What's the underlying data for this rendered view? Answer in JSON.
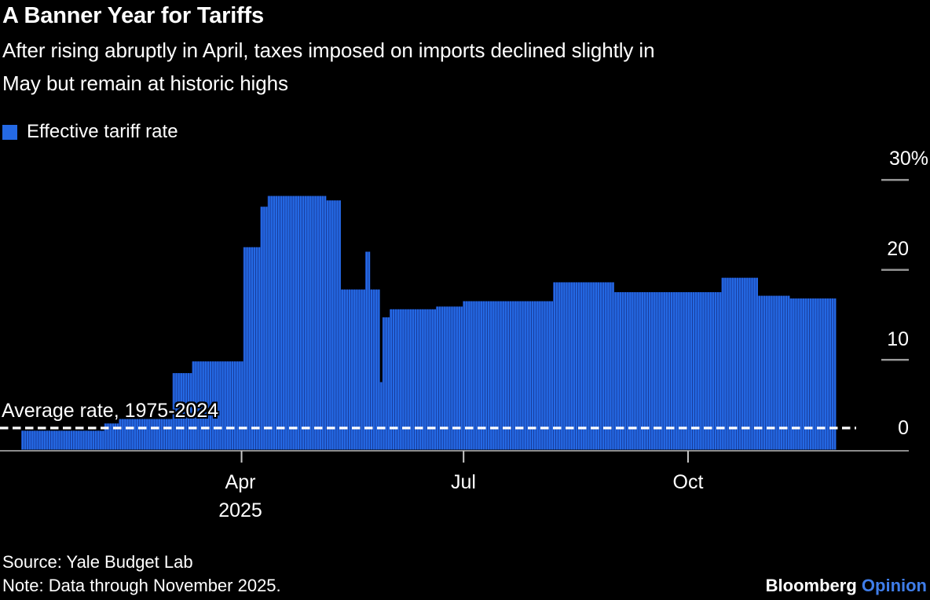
{
  "header": {
    "title": "A Banner Year for Tariffs",
    "subtitle_line1": "After rising abruptly in April, taxes imposed on imports declined slightly in",
    "subtitle_line2": "May but remain at historic highs"
  },
  "legend": {
    "label": "Effective tariff rate",
    "color": "#2469e4"
  },
  "footer": {
    "source": "Source: Yale Budget Lab",
    "note": "Note: Data through November 2025.",
    "brand_name": "Bloomberg",
    "brand_section": "Opinion",
    "brand_section_color": "#3f7de9"
  },
  "chart_data": {
    "type": "bar",
    "title": "A Banner Year for Tariffs",
    "series_name": "Effective tariff rate",
    "unit": "percent",
    "x_range": [
      "2025-01-01",
      "2025-11-30"
    ],
    "ylim": [
      0,
      30
    ],
    "grid": "right-side tick dashes only",
    "bar_color": "#2469e4",
    "bar_gap_color": "#1a3da0",
    "axis_color": "#8c8c8c",
    "y_axis": {
      "side": "right",
      "ticks": [
        {
          "value": 30,
          "label": "30%"
        },
        {
          "value": 20,
          "label": "20"
        },
        {
          "value": 10,
          "label": "10"
        },
        {
          "value": 0,
          "label": "0"
        }
      ]
    },
    "x_axis": {
      "ticks": [
        {
          "date": "2025-04-01",
          "label": "Apr",
          "sublabel": "2025"
        },
        {
          "date": "2025-07-01",
          "label": "Jul",
          "sublabel": ""
        },
        {
          "date": "2025-10-01",
          "label": "Oct",
          "sublabel": ""
        }
      ]
    },
    "average_line": {
      "label": "Average rate, 1975-2024",
      "value": 2.4,
      "style": "dashed-white"
    },
    "segments": [
      {
        "from": "2025-01-01",
        "to": "2025-02-03",
        "value": 2.1
      },
      {
        "from": "2025-02-04",
        "to": "2025-02-09",
        "value": 2.9
      },
      {
        "from": "2025-02-10",
        "to": "2025-03-03",
        "value": 3.4
      },
      {
        "from": "2025-03-04",
        "to": "2025-03-11",
        "value": 8.5
      },
      {
        "from": "2025-03-12",
        "to": "2025-04-01",
        "value": 9.8
      },
      {
        "from": "2025-04-02",
        "to": "2025-04-08",
        "value": 22.5
      },
      {
        "from": "2025-04-09",
        "to": "2025-04-11",
        "value": 27.0
      },
      {
        "from": "2025-04-12",
        "to": "2025-05-05",
        "value": 28.2
      },
      {
        "from": "2025-05-06",
        "to": "2025-05-11",
        "value": 27.7
      },
      {
        "from": "2025-05-12",
        "to": "2025-05-21",
        "value": 17.8
      },
      {
        "from": "2025-05-22",
        "to": "2025-05-23",
        "value": 22.0
      },
      {
        "from": "2025-05-24",
        "to": "2025-05-27",
        "value": 17.8
      },
      {
        "from": "2025-05-28",
        "to": "2025-05-28",
        "value": 7.5
      },
      {
        "from": "2025-05-29",
        "to": "2025-05-31",
        "value": 14.7
      },
      {
        "from": "2025-06-01",
        "to": "2025-06-19",
        "value": 15.6
      },
      {
        "from": "2025-06-20",
        "to": "2025-06-30",
        "value": 15.9
      },
      {
        "from": "2025-07-01",
        "to": "2025-08-06",
        "value": 16.5
      },
      {
        "from": "2025-08-07",
        "to": "2025-08-31",
        "value": 18.6
      },
      {
        "from": "2025-09-01",
        "to": "2025-10-14",
        "value": 17.5
      },
      {
        "from": "2025-10-15",
        "to": "2025-10-29",
        "value": 19.1
      },
      {
        "from": "2025-10-30",
        "to": "2025-11-11",
        "value": 17.1
      },
      {
        "from": "2025-11-12",
        "to": "2025-11-30",
        "value": 16.8
      }
    ]
  }
}
